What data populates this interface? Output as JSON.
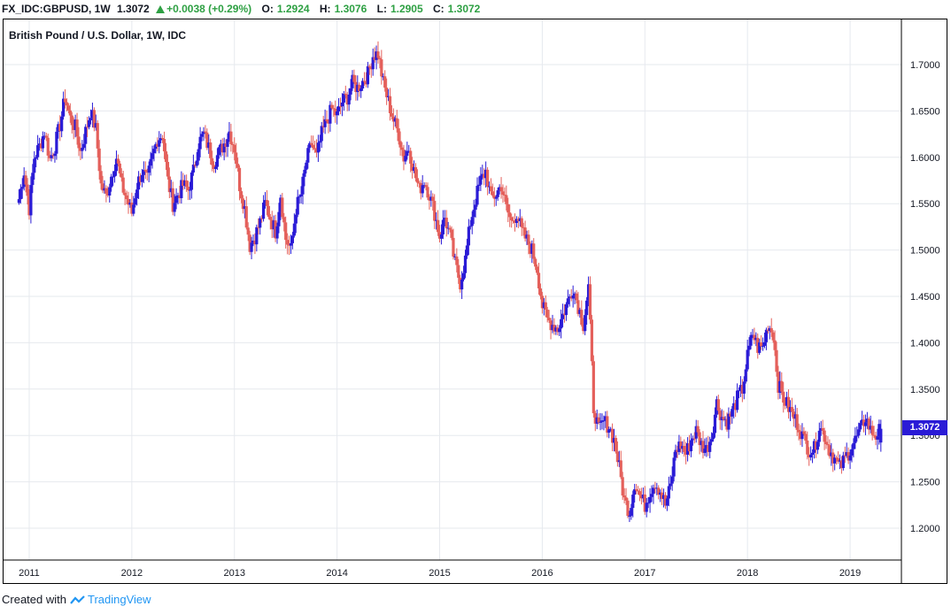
{
  "header": {
    "symbol": "FX_IDC:GBPUSD, 1W",
    "last": "1.3072",
    "change": "+0.0038 (+0.29%)",
    "open_label": "O:",
    "open": "1.2924",
    "high_label": "H:",
    "high": "1.3076",
    "low_label": "L:",
    "low": "1.2905",
    "close_label": "C:",
    "close": "1.3072"
  },
  "footer": {
    "created_with": "Created with",
    "brand": "TradingView"
  },
  "colors": {
    "up": "#2a1bd6",
    "down": "#e4605b",
    "grid": "#e6e9ee",
    "accent_green": "#2ea043"
  },
  "chart_data": {
    "type": "candlestick",
    "title": "British Pound / U.S. Dollar, 1W, IDC",
    "ylim": [
      1.17,
      1.73
    ],
    "yticks": [
      "1.2000",
      "1.2500",
      "1.3000",
      "1.3500",
      "1.4000",
      "1.4500",
      "1.5000",
      "1.5500",
      "1.6000",
      "1.6500",
      "1.7000"
    ],
    "xticks": [
      "2011",
      "2012",
      "2013",
      "2014",
      "2015",
      "2016",
      "2017",
      "2018",
      "2019"
    ],
    "last_price": "1.3072",
    "grid": true,
    "series": [
      {
        "values": [
          [
            2010.9,
            1.555
          ],
          [
            2010.95,
            1.585
          ],
          [
            2011.0,
            1.545
          ],
          [
            2011.05,
            1.6
          ],
          [
            2011.1,
            1.612
          ],
          [
            2011.15,
            1.628
          ],
          [
            2011.2,
            1.598
          ],
          [
            2011.25,
            1.612
          ],
          [
            2011.3,
            1.635
          ],
          [
            2011.35,
            1.665
          ],
          [
            2011.4,
            1.642
          ],
          [
            2011.45,
            1.632
          ],
          [
            2011.5,
            1.606
          ],
          [
            2011.55,
            1.628
          ],
          [
            2011.6,
            1.65
          ],
          [
            2011.65,
            1.63
          ],
          [
            2011.7,
            1.57
          ],
          [
            2011.75,
            1.558
          ],
          [
            2011.8,
            1.58
          ],
          [
            2011.85,
            1.6
          ],
          [
            2011.9,
            1.57
          ],
          [
            2011.95,
            1.555
          ],
          [
            2012.0,
            1.54
          ],
          [
            2012.05,
            1.57
          ],
          [
            2012.1,
            1.585
          ],
          [
            2012.15,
            1.575
          ],
          [
            2012.2,
            1.6
          ],
          [
            2012.25,
            1.62
          ],
          [
            2012.3,
            1.625
          ],
          [
            2012.35,
            1.575
          ],
          [
            2012.4,
            1.55
          ],
          [
            2012.45,
            1.56
          ],
          [
            2012.5,
            1.57
          ],
          [
            2012.55,
            1.565
          ],
          [
            2012.6,
            1.585
          ],
          [
            2012.65,
            1.615
          ],
          [
            2012.7,
            1.625
          ],
          [
            2012.75,
            1.61
          ],
          [
            2012.8,
            1.595
          ],
          [
            2012.85,
            1.605
          ],
          [
            2012.9,
            1.615
          ],
          [
            2012.95,
            1.628
          ],
          [
            2013.0,
            1.61
          ],
          [
            2013.05,
            1.57
          ],
          [
            2013.1,
            1.545
          ],
          [
            2013.15,
            1.505
          ],
          [
            2013.2,
            1.515
          ],
          [
            2013.25,
            1.53
          ],
          [
            2013.3,
            1.55
          ],
          [
            2013.35,
            1.535
          ],
          [
            2013.4,
            1.52
          ],
          [
            2013.45,
            1.56
          ],
          [
            2013.5,
            1.512
          ],
          [
            2013.55,
            1.5
          ],
          [
            2013.6,
            1.545
          ],
          [
            2013.65,
            1.56
          ],
          [
            2013.7,
            1.595
          ],
          [
            2013.75,
            1.615
          ],
          [
            2013.8,
            1.6
          ],
          [
            2013.85,
            1.625
          ],
          [
            2013.9,
            1.64
          ],
          [
            2013.95,
            1.652
          ],
          [
            2014.0,
            1.645
          ],
          [
            2014.05,
            1.66
          ],
          [
            2014.1,
            1.665
          ],
          [
            2014.15,
            1.68
          ],
          [
            2014.2,
            1.675
          ],
          [
            2014.25,
            1.682
          ],
          [
            2014.3,
            1.69
          ],
          [
            2014.35,
            1.71
          ],
          [
            2014.4,
            1.712
          ],
          [
            2014.45,
            1.68
          ],
          [
            2014.5,
            1.66
          ],
          [
            2014.55,
            1.64
          ],
          [
            2014.6,
            1.625
          ],
          [
            2014.65,
            1.6
          ],
          [
            2014.7,
            1.61
          ],
          [
            2014.75,
            1.585
          ],
          [
            2014.8,
            1.565
          ],
          [
            2014.85,
            1.575
          ],
          [
            2014.9,
            1.56
          ],
          [
            2014.95,
            1.54
          ],
          [
            2015.0,
            1.515
          ],
          [
            2015.05,
            1.535
          ],
          [
            2015.1,
            1.515
          ],
          [
            2015.15,
            1.485
          ],
          [
            2015.2,
            1.465
          ],
          [
            2015.25,
            1.49
          ],
          [
            2015.3,
            1.53
          ],
          [
            2015.35,
            1.555
          ],
          [
            2015.4,
            1.575
          ],
          [
            2015.45,
            1.585
          ],
          [
            2015.5,
            1.555
          ],
          [
            2015.55,
            1.56
          ],
          [
            2015.6,
            1.57
          ],
          [
            2015.65,
            1.545
          ],
          [
            2015.7,
            1.53
          ],
          [
            2015.75,
            1.54
          ],
          [
            2015.8,
            1.52
          ],
          [
            2015.85,
            1.51
          ],
          [
            2015.9,
            1.5
          ],
          [
            2015.95,
            1.48
          ],
          [
            2016.0,
            1.44
          ],
          [
            2016.05,
            1.425
          ],
          [
            2016.1,
            1.42
          ],
          [
            2016.15,
            1.415
          ],
          [
            2016.2,
            1.43
          ],
          [
            2016.25,
            1.445
          ],
          [
            2016.3,
            1.46
          ],
          [
            2016.35,
            1.44
          ],
          [
            2016.4,
            1.42
          ],
          [
            2016.45,
            1.46
          ],
          [
            2016.5,
            1.33
          ],
          [
            2016.55,
            1.305
          ],
          [
            2016.6,
            1.315
          ],
          [
            2016.65,
            1.31
          ],
          [
            2016.7,
            1.295
          ],
          [
            2016.75,
            1.265
          ],
          [
            2016.8,
            1.23
          ],
          [
            2016.85,
            1.218
          ],
          [
            2016.9,
            1.25
          ],
          [
            2016.95,
            1.235
          ],
          [
            2017.0,
            1.225
          ],
          [
            2017.05,
            1.24
          ],
          [
            2017.1,
            1.25
          ],
          [
            2017.15,
            1.24
          ],
          [
            2017.2,
            1.225
          ],
          [
            2017.25,
            1.245
          ],
          [
            2017.3,
            1.285
          ],
          [
            2017.35,
            1.29
          ],
          [
            2017.4,
            1.28
          ],
          [
            2017.45,
            1.295
          ],
          [
            2017.5,
            1.305
          ],
          [
            2017.55,
            1.29
          ],
          [
            2017.6,
            1.285
          ],
          [
            2017.65,
            1.3
          ],
          [
            2017.7,
            1.335
          ],
          [
            2017.75,
            1.32
          ],
          [
            2017.8,
            1.315
          ],
          [
            2017.85,
            1.325
          ],
          [
            2017.9,
            1.34
          ],
          [
            2017.95,
            1.35
          ],
          [
            2018.0,
            1.385
          ],
          [
            2018.05,
            1.41
          ],
          [
            2018.1,
            1.395
          ],
          [
            2018.15,
            1.395
          ],
          [
            2018.2,
            1.42
          ],
          [
            2018.25,
            1.41
          ],
          [
            2018.3,
            1.355
          ],
          [
            2018.35,
            1.34
          ],
          [
            2018.4,
            1.33
          ],
          [
            2018.45,
            1.32
          ],
          [
            2018.5,
            1.31
          ],
          [
            2018.55,
            1.295
          ],
          [
            2018.6,
            1.285
          ],
          [
            2018.65,
            1.285
          ],
          [
            2018.7,
            1.31
          ],
          [
            2018.75,
            1.3
          ],
          [
            2018.8,
            1.285
          ],
          [
            2018.85,
            1.275
          ],
          [
            2018.9,
            1.265
          ],
          [
            2018.95,
            1.275
          ],
          [
            2019.0,
            1.285
          ],
          [
            2019.05,
            1.295
          ],
          [
            2019.1,
            1.305
          ],
          [
            2019.15,
            1.32
          ],
          [
            2019.2,
            1.305
          ],
          [
            2019.25,
            1.3
          ],
          [
            2019.3,
            1.3072
          ]
        ]
      }
    ]
  }
}
